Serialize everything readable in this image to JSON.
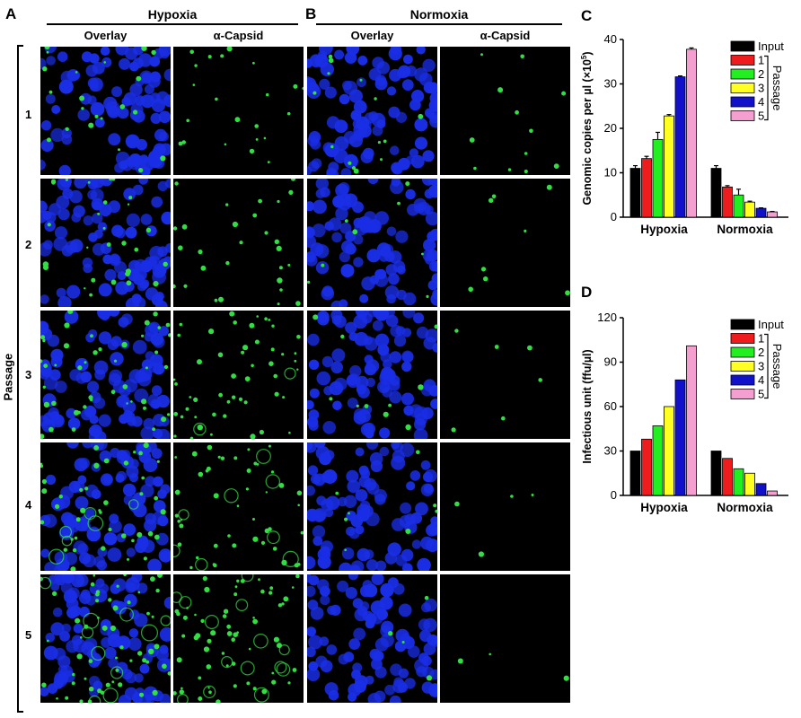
{
  "panels": {
    "A": {
      "letter": "A",
      "title": "Hypoxia",
      "columns": [
        "Overlay",
        "α-Capsid"
      ]
    },
    "B": {
      "letter": "B",
      "title": "Normoxia",
      "columns": [
        "Overlay",
        "α-Capsid"
      ]
    },
    "C": {
      "letter": "C"
    },
    "D": {
      "letter": "D"
    }
  },
  "passage_axis": {
    "label": "Passage",
    "rows": [
      "1",
      "2",
      "3",
      "4",
      "5"
    ]
  },
  "colors": {
    "nuclei": "#1a2ee6",
    "capsid": "#33dd44",
    "tile_bg": "#000000",
    "series": [
      "#000000",
      "#ee1c1c",
      "#22ee22",
      "#ffff22",
      "#1111cc",
      "#f59fd0"
    ]
  },
  "legend": {
    "entries": [
      "Input",
      "1",
      "2",
      "3",
      "4",
      "5"
    ],
    "bracket_label": "Passage"
  },
  "chart_data": [
    {
      "id": "C",
      "type": "bar",
      "categories": [
        "Hypoxia",
        "Normoxia"
      ],
      "series": [
        {
          "name": "Input",
          "values": [
            11.0,
            11.0
          ],
          "errors": [
            0.6,
            0.6
          ]
        },
        {
          "name": "1",
          "values": [
            13.2,
            6.8
          ],
          "errors": [
            0.5,
            0.3
          ]
        },
        {
          "name": "2",
          "values": [
            17.5,
            5.0
          ],
          "errors": [
            1.6,
            1.3
          ]
        },
        {
          "name": "3",
          "values": [
            22.8,
            3.4
          ],
          "errors": [
            0.3,
            0.2
          ]
        },
        {
          "name": "4",
          "values": [
            31.6,
            2.0
          ],
          "errors": [
            0.2,
            0.1
          ]
        },
        {
          "name": "5",
          "values": [
            37.8,
            1.2
          ],
          "errors": [
            0.3,
            0.1
          ]
        }
      ],
      "ylabel_main": "Genomic copies per µl (×10",
      "ylabel_sup": "5",
      "ylabel_end": ")",
      "ylim": [
        0,
        40
      ],
      "yticks": [
        "0",
        "10",
        "20",
        "30",
        "40"
      ],
      "legend_position": "top-right"
    },
    {
      "id": "D",
      "type": "bar",
      "categories": [
        "Hypoxia",
        "Normoxia"
      ],
      "series": [
        {
          "name": "Input",
          "values": [
            30,
            30
          ]
        },
        {
          "name": "1",
          "values": [
            38,
            25
          ]
        },
        {
          "name": "2",
          "values": [
            47,
            18
          ]
        },
        {
          "name": "3",
          "values": [
            60,
            15
          ]
        },
        {
          "name": "4",
          "values": [
            78,
            8
          ]
        },
        {
          "name": "5",
          "values": [
            101,
            3
          ]
        }
      ],
      "ylabel": "Infectious unit (ffu/µl)",
      "ylim": [
        0,
        120
      ],
      "yticks": [
        "0",
        "30",
        "60",
        "90",
        "120"
      ],
      "legend_position": "top-right"
    }
  ]
}
